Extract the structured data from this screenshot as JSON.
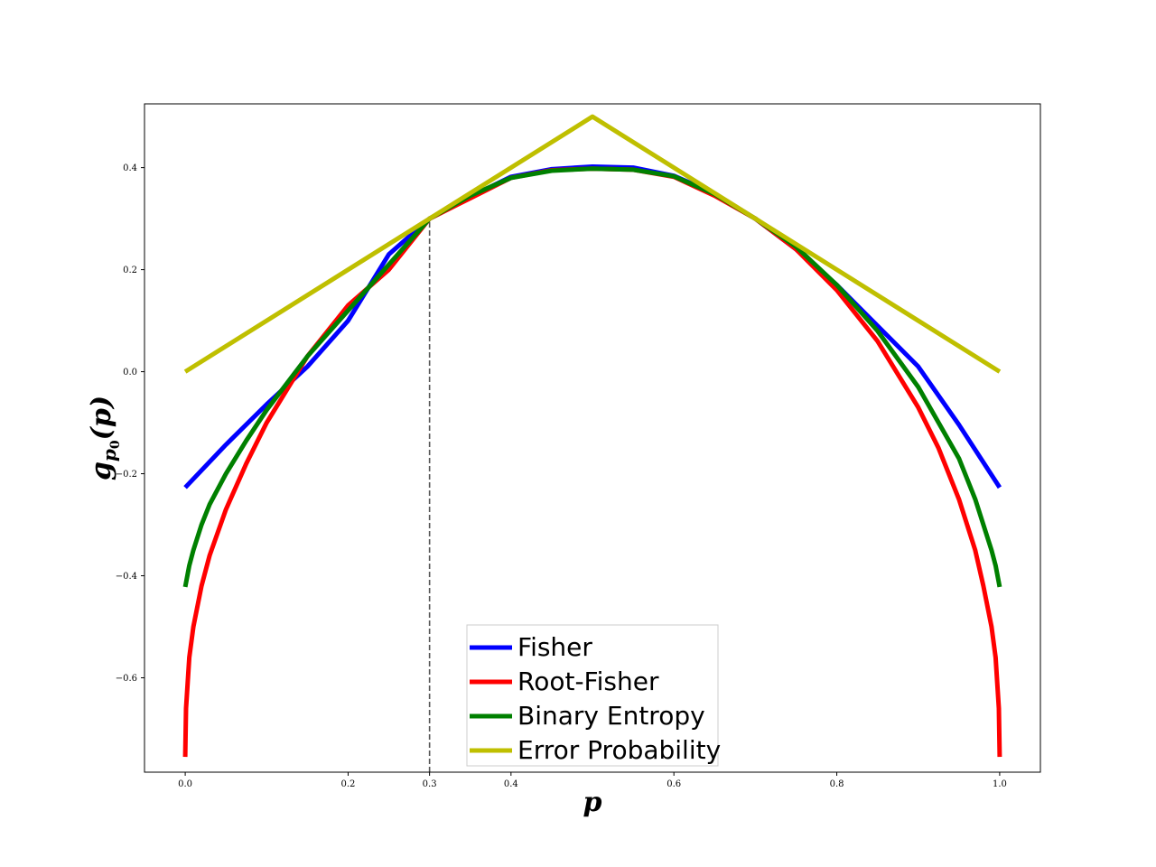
{
  "chart_data": {
    "type": "line",
    "title": "",
    "xlabel": "p",
    "ylabel_main": "g",
    "ylabel_sub": "p",
    "ylabel_subsub": "0",
    "ylabel_arg": "(p)",
    "xlim": [
      -0.05,
      1.05
    ],
    "ylim": [
      -0.785,
      0.525
    ],
    "xticks": [
      {
        "value": 0.0,
        "label": "0.0"
      },
      {
        "value": 0.2,
        "label": "0.2"
      },
      {
        "value": 0.3,
        "label": "0.3"
      },
      {
        "value": 0.4,
        "label": "0.4"
      },
      {
        "value": 0.6,
        "label": "0.6"
      },
      {
        "value": 0.8,
        "label": "0.8"
      },
      {
        "value": 1.0,
        "label": "1.0"
      }
    ],
    "yticks": [
      {
        "value": 0.4,
        "label": "0.4"
      },
      {
        "value": 0.2,
        "label": "0.2"
      },
      {
        "value": 0.0,
        "label": "0.0"
      },
      {
        "value": -0.2,
        "label": "−0.2"
      },
      {
        "value": -0.4,
        "label": "−0.4"
      },
      {
        "value": -0.6,
        "label": "−0.6"
      }
    ],
    "vline": {
      "x": 0.3,
      "y_from": -0.785,
      "y_to": 0.3,
      "color": "#555555"
    },
    "grid": false,
    "legend_position": "lower-center",
    "series": [
      {
        "name": "Fisher",
        "color": "#0000ff",
        "x": [
          0.0,
          0.05,
          0.1,
          0.15,
          0.2,
          0.25,
          0.3,
          0.35,
          0.4,
          0.45,
          0.5,
          0.55,
          0.6,
          0.65,
          0.7,
          0.75,
          0.8,
          0.85,
          0.9,
          0.95,
          1.0
        ],
        "y": [
          -0.227,
          -0.143,
          -0.064,
          0.01,
          0.1,
          0.23,
          0.3,
          0.343,
          0.382,
          0.397,
          0.402,
          0.4,
          0.384,
          0.349,
          0.3,
          0.24,
          0.17,
          0.09,
          0.01,
          -0.104,
          -0.227
        ]
      },
      {
        "name": "Root-Fisher",
        "color": "#ff0000",
        "x": [
          0.0,
          0.001,
          0.005,
          0.01,
          0.02,
          0.03,
          0.05,
          0.075,
          0.1,
          0.15,
          0.2,
          0.25,
          0.3,
          0.35,
          0.4,
          0.45,
          0.5,
          0.55,
          0.6,
          0.65,
          0.7,
          0.75,
          0.8,
          0.85,
          0.9,
          0.925,
          0.95,
          0.97,
          0.98,
          0.99,
          0.995,
          0.999,
          1.0
        ],
        "y": [
          -0.755,
          -0.66,
          -0.56,
          -0.5,
          -0.42,
          -0.36,
          -0.27,
          -0.18,
          -0.1,
          0.03,
          0.13,
          0.2,
          0.3,
          0.34,
          0.38,
          0.395,
          0.398,
          0.396,
          0.382,
          0.345,
          0.3,
          0.24,
          0.16,
          0.06,
          -0.07,
          -0.15,
          -0.25,
          -0.35,
          -0.42,
          -0.5,
          -0.56,
          -0.66,
          -0.755
        ]
      },
      {
        "name": "Binary Entropy",
        "color": "#008000",
        "x": [
          0.0,
          0.005,
          0.01,
          0.02,
          0.03,
          0.05,
          0.075,
          0.1,
          0.15,
          0.2,
          0.25,
          0.3,
          0.35,
          0.4,
          0.45,
          0.5,
          0.55,
          0.6,
          0.65,
          0.7,
          0.75,
          0.8,
          0.85,
          0.9,
          0.95,
          0.97,
          0.98,
          0.99,
          0.995,
          1.0
        ],
        "y": [
          -0.422,
          -0.38,
          -0.35,
          -0.3,
          -0.26,
          -0.2,
          -0.135,
          -0.075,
          0.03,
          0.12,
          0.21,
          0.3,
          0.345,
          0.38,
          0.394,
          0.398,
          0.396,
          0.383,
          0.348,
          0.3,
          0.245,
          0.17,
          0.08,
          -0.03,
          -0.17,
          -0.25,
          -0.3,
          -0.35,
          -0.38,
          -0.422
        ]
      },
      {
        "name": "Error Probability",
        "color": "#bfbf00",
        "x": [
          0.0,
          0.5,
          1.0
        ],
        "y": [
          0.0,
          0.5,
          0.0
        ]
      }
    ]
  }
}
